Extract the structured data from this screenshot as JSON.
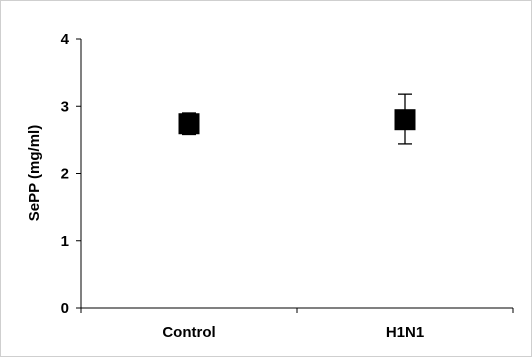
{
  "chart_data": {
    "type": "scatter",
    "title": "",
    "xlabel": "",
    "ylabel": "SePP (mg/ml)",
    "categories": [
      "Control",
      "H1N1"
    ],
    "series": [
      {
        "values": [
          2.74,
          2.8
        ],
        "error_low": [
          2.58,
          2.44
        ],
        "error_high": [
          2.9,
          3.18
        ],
        "marker": "square",
        "color": "#000000"
      }
    ],
    "ylim": [
      0,
      4
    ],
    "yticks": [
      "0",
      "1",
      "2",
      "3",
      "4"
    ],
    "grid": false,
    "legend": "none"
  }
}
